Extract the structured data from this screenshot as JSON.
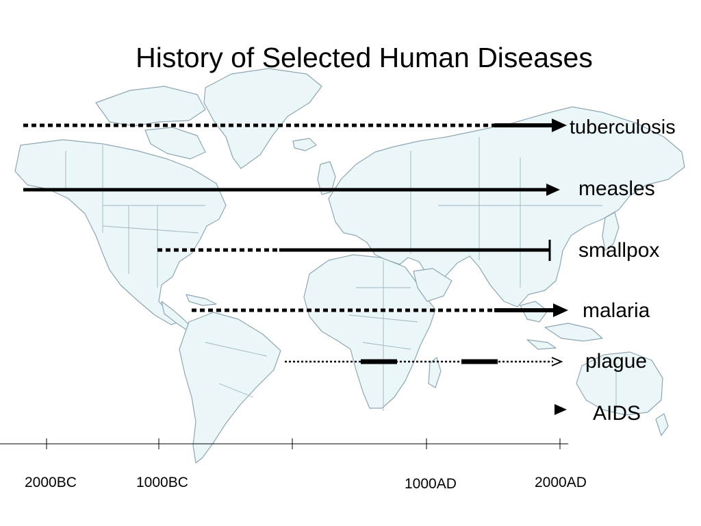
{
  "title": "History of Selected Human Diseases",
  "diseases": [
    {
      "name": "tuberculosis"
    },
    {
      "name": "measles"
    },
    {
      "name": "smallpox"
    },
    {
      "name": "malaria"
    },
    {
      "name": "plague"
    },
    {
      "name": "AIDS"
    }
  ],
  "timeline": {
    "tick_labels": [
      "2000BC",
      "1000BC",
      "1000AD",
      "2000AD"
    ]
  },
  "colors": {
    "map_fill": "#eaf6f8",
    "map_border": "#8fa6b2",
    "line": "#000000"
  }
}
